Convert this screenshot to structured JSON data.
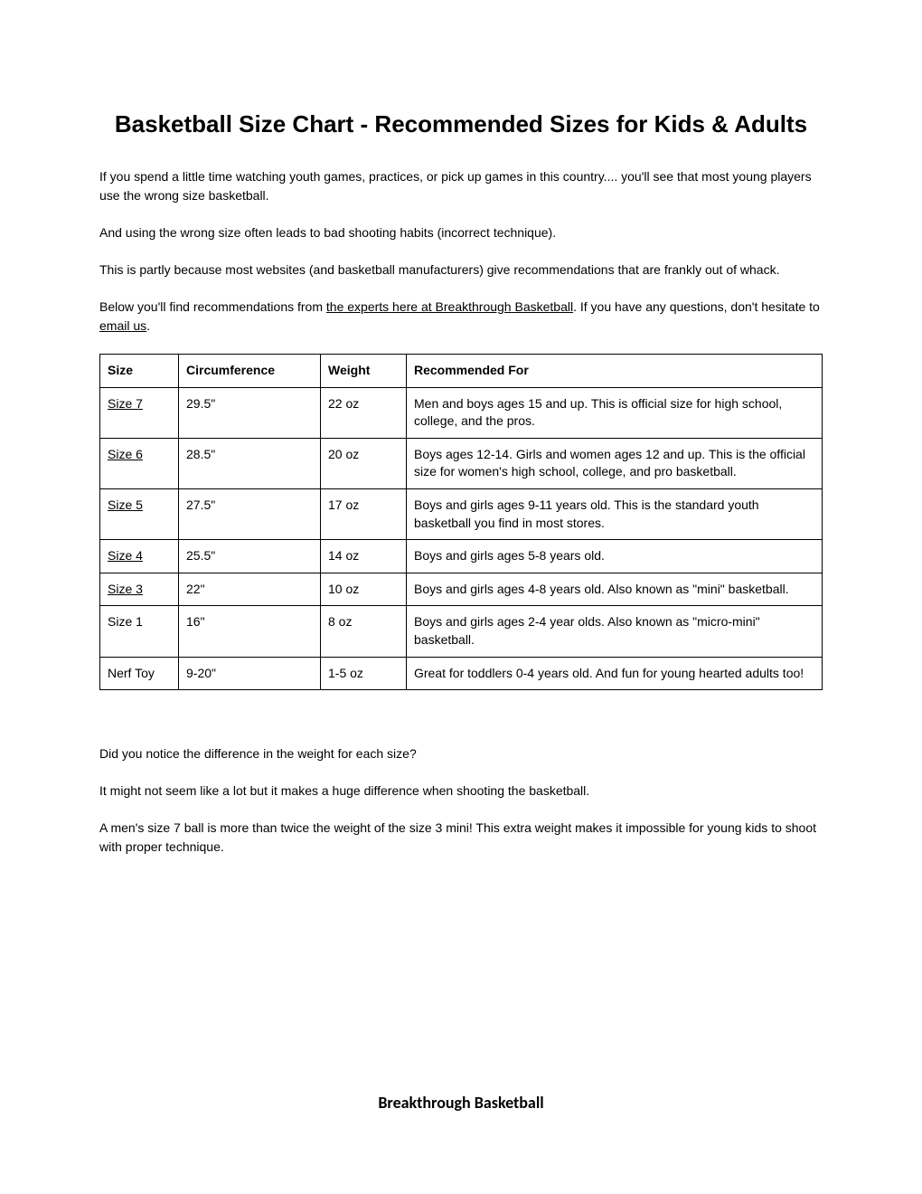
{
  "title": "Basketball Size Chart - Recommended Sizes for Kids & Adults",
  "intro": {
    "p1": "If you spend a little time watching youth games, practices, or pick up games in this country.... you'll see that most young players use the wrong size basketball.",
    "p2": "And using the wrong size often leads to bad shooting habits (incorrect technique).",
    "p3": "This is partly because most websites (and basketball manufacturers) give recommendations that are frankly out of whack.",
    "p4_pre": "Below you'll find recommendations from ",
    "p4_link1": "the experts here at Breakthrough Basketball",
    "p4_mid": ". If you have any questions, don't hesitate to ",
    "p4_link2": "email us",
    "p4_post": "."
  },
  "table": {
    "headers": {
      "size": "Size",
      "circumference": "Circumference",
      "weight": "Weight",
      "recommended": "Recommended For"
    },
    "rows": [
      {
        "size": "Size 7",
        "size_link": true,
        "circ": "29.5\"",
        "weight": "22 oz",
        "rec": "Men and boys ages 15 and up. This is official size for high school, college, and the pros."
      },
      {
        "size": "Size 6",
        "size_link": true,
        "circ": "28.5\"",
        "weight": "20 oz",
        "rec": "Boys ages 12-14. Girls and women ages 12 and up. This is the official size for women's high school, college, and pro basketball."
      },
      {
        "size": "Size 5",
        "size_link": true,
        "circ": "27.5\"",
        "weight": "17 oz",
        "rec": "Boys and girls ages 9-11 years old. This is the standard youth basketball you find in most stores."
      },
      {
        "size": "Size 4",
        "size_link": true,
        "circ": "25.5\"",
        "weight": "14 oz",
        "rec": "Boys and girls ages 5-8 years old."
      },
      {
        "size": "Size 3",
        "size_link": true,
        "circ": "22\"",
        "weight": "10 oz",
        "rec": "Boys and girls ages 4-8 years old. Also known as \"mini\" basketball."
      },
      {
        "size": "Size 1",
        "size_link": false,
        "circ": "16\"",
        "weight": "8 oz",
        "rec": "Boys and girls ages 2-4 year olds. Also known as \"micro-mini\" basketball."
      },
      {
        "size": "Nerf Toy",
        "size_link": false,
        "circ": "9-20\"",
        "weight": "1-5 oz",
        "rec": "Great for toddlers 0-4 years old. And fun for young hearted adults too!"
      }
    ]
  },
  "outro": {
    "p1": "Did you notice the difference in the weight for each size?",
    "p2": "It might not seem like a lot but it makes a huge difference when shooting the basketball.",
    "p3": "A men's size 7 ball is more than twice the weight of the size 3 mini! This extra weight makes it impossible for young kids to shoot with proper technique."
  },
  "footer": "Breakthrough Basketball"
}
